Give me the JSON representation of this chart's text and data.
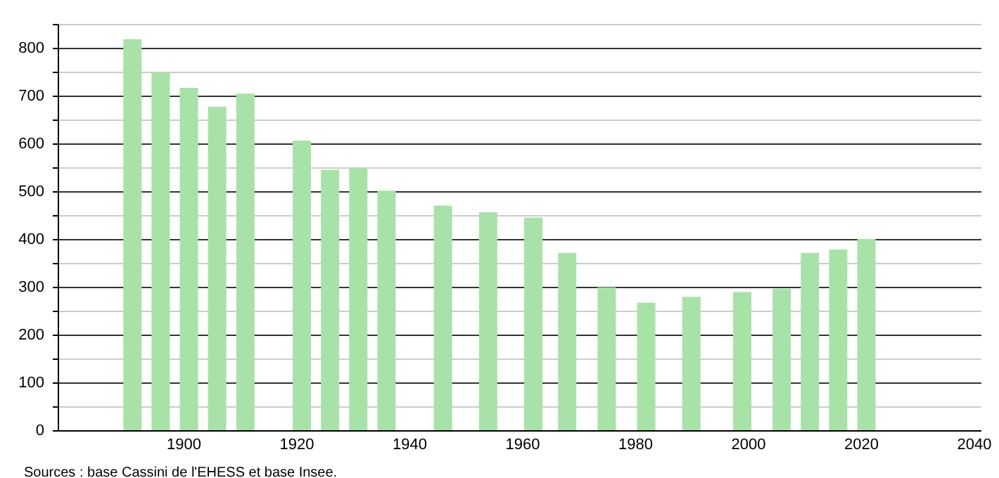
{
  "chart_data": {
    "type": "bar",
    "annotations": [
      "Sources : base Cassini de l'EHESS et base Insee."
    ],
    "x": [
      1891,
      1896,
      1901,
      1906,
      1911,
      1921,
      1926,
      1931,
      1936,
      1946,
      1954,
      1962,
      1968,
      1975,
      1982,
      1990,
      1999,
      2006,
      2011,
      2016,
      2021
    ],
    "values": [
      818,
      749,
      716,
      677,
      704,
      606,
      545,
      548,
      501,
      470,
      456,
      445,
      371,
      299,
      267,
      279,
      289,
      296,
      371,
      378,
      400
    ],
    "color": "#a8e2a8",
    "xlim": [
      1879,
      2040
    ],
    "xticks": [
      1900,
      1920,
      1940,
      1960,
      1980,
      2000,
      2020,
      2040
    ],
    "ylim": [
      0,
      850
    ],
    "yticks": [
      0,
      {
        "value": 50,
        "label": null
      },
      100,
      {
        "value": 150,
        "label": null
      },
      200,
      {
        "value": 250,
        "label": null
      },
      300,
      {
        "value": 350,
        "label": null
      },
      400,
      {
        "value": 450,
        "label": null
      },
      500,
      {
        "value": 550,
        "label": null
      },
      600,
      {
        "value": 650,
        "label": null
      },
      700,
      {
        "value": 750,
        "label": null
      },
      800,
      {
        "value": 850,
        "label": null
      }
    ],
    "grid": "y"
  }
}
